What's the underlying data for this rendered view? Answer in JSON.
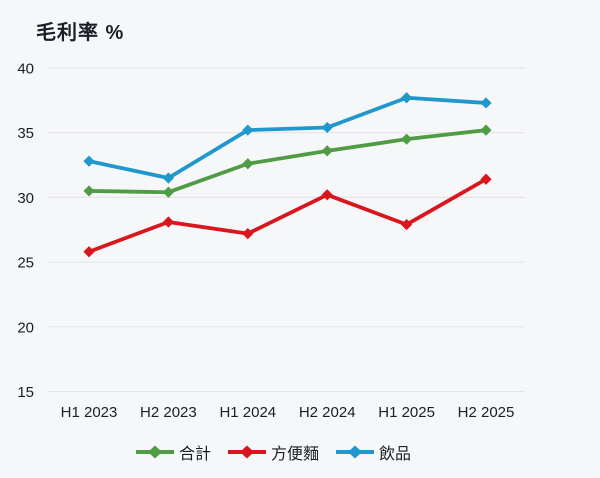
{
  "chart_data": {
    "type": "line",
    "title": "毛利率 %",
    "categories": [
      "H1 2023",
      "H2 2023",
      "H1 2024",
      "H2 2024",
      "H1 2025",
      "H2 2025"
    ],
    "series": [
      {
        "name": "合計",
        "color": "#4f9c44",
        "values": [
          30.5,
          30.4,
          32.6,
          33.6,
          34.5,
          35.2
        ]
      },
      {
        "name": "方便麵",
        "color": "#d9161d",
        "values": [
          25.8,
          28.1,
          27.2,
          30.2,
          27.9,
          31.4
        ]
      },
      {
        "name": "飲品",
        "color": "#2097cd",
        "values": [
          32.8,
          31.5,
          35.2,
          35.4,
          37.7,
          37.3
        ]
      }
    ],
    "ylim": [
      15,
      40
    ],
    "yticks": [
      40,
      35,
      30,
      25,
      20,
      15
    ],
    "grid": true,
    "marker": "diamond",
    "legend_position": "bottom",
    "colors": {
      "background": "#f6f7f9",
      "gridline": "#e3e5e9",
      "text": "#1b1e26"
    }
  }
}
